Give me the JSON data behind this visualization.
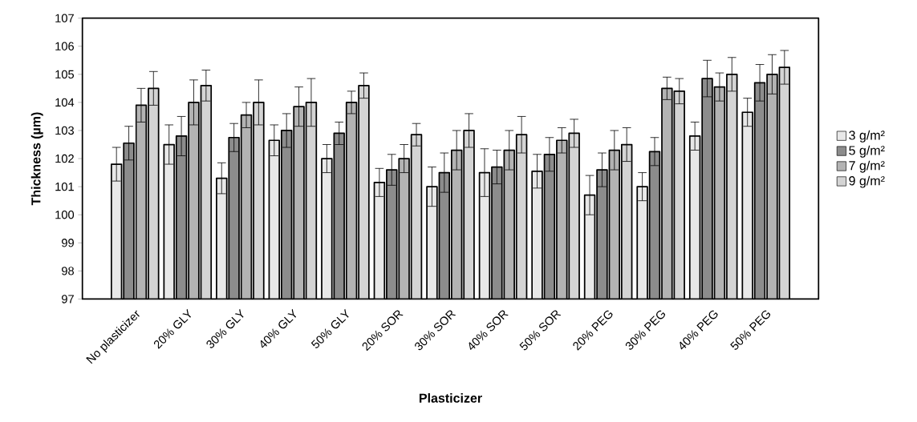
{
  "chart_data": {
    "type": "bar",
    "xlabel": "Plasticizer",
    "ylabel": "Thickness (µm)",
    "categories": [
      "No plasticizer",
      "20% GLY",
      "30% GLY",
      "40% GLY",
      "50% GLY",
      "20% SOR",
      "30% SOR",
      "40% SOR",
      "50% SOR",
      "20% PEG",
      "30% PEG",
      "40% PEG",
      "50% PEG"
    ],
    "series": [
      {
        "name": "3 g/m²",
        "color": "#e8e8e8",
        "values": [
          101.8,
          102.5,
          101.3,
          102.65,
          102.0,
          101.15,
          101.0,
          101.5,
          101.55,
          100.7,
          101.0,
          102.8,
          103.65
        ],
        "errors": [
          0.6,
          0.7,
          0.55,
          0.55,
          0.5,
          0.5,
          0.7,
          0.85,
          0.6,
          0.7,
          0.5,
          0.5,
          0.5
        ]
      },
      {
        "name": "5 g/m²",
        "color": "#8c8c8c",
        "values": [
          102.55,
          102.8,
          102.75,
          103.0,
          102.9,
          101.6,
          101.5,
          101.7,
          102.15,
          101.6,
          102.25,
          104.85,
          104.7
        ],
        "errors": [
          0.6,
          0.7,
          0.5,
          0.6,
          0.4,
          0.55,
          0.7,
          0.6,
          0.6,
          0.6,
          0.5,
          0.65,
          0.65
        ]
      },
      {
        "name": "7 g/m²",
        "color": "#b3b3b3",
        "values": [
          103.9,
          104.0,
          103.55,
          103.85,
          104.0,
          102.0,
          102.3,
          102.3,
          102.65,
          102.3,
          104.5,
          104.55,
          105.0
        ],
        "errors": [
          0.6,
          0.8,
          0.45,
          0.7,
          0.4,
          0.5,
          0.7,
          0.7,
          0.45,
          0.7,
          0.4,
          0.5,
          0.7
        ]
      },
      {
        "name": "9 g/m²",
        "color": "#d4d4d4",
        "values": [
          104.5,
          104.6,
          104.0,
          104.0,
          104.6,
          102.85,
          103.0,
          102.85,
          102.9,
          102.5,
          104.4,
          105.0,
          105.25
        ],
        "errors": [
          0.6,
          0.55,
          0.8,
          0.85,
          0.45,
          0.4,
          0.6,
          0.65,
          0.5,
          0.6,
          0.45,
          0.6,
          0.6
        ]
      }
    ],
    "ylim": [
      97,
      107
    ],
    "yticks": [
      97,
      98,
      99,
      100,
      101,
      102,
      103,
      104,
      105,
      106,
      107
    ],
    "legend": "right"
  }
}
